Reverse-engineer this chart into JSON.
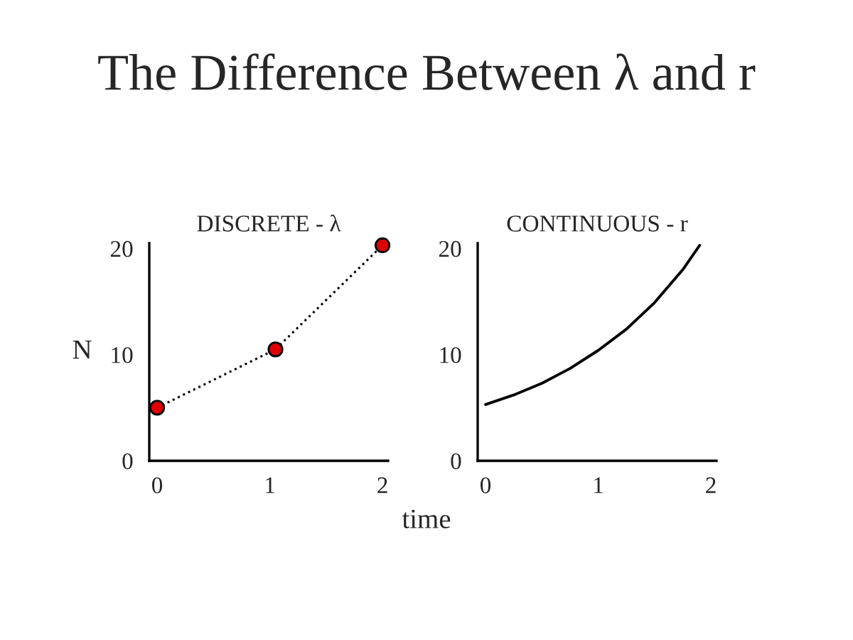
{
  "chart_data": [
    {
      "type": "line",
      "title": "DISCRETE - λ",
      "ylabel": "N",
      "xlabel": "time",
      "annotations": [
        "The Difference Between λ and r"
      ],
      "marker": "circle",
      "line_style": "dotted",
      "xlim": [
        -0.07,
        2.05
      ],
      "ylim": [
        0,
        20.5
      ],
      "xticks": [
        0,
        1,
        2
      ],
      "yticks": [
        0,
        10,
        20
      ],
      "grid": false,
      "series": [
        {
          "color": "#dd0000",
          "x": [
            0,
            1.05,
            2
          ],
          "values": [
            5,
            10.5,
            20.3
          ]
        }
      ]
    },
    {
      "type": "line",
      "title": "CONTINUOUS - r",
      "marker": "none",
      "line_style": "solid",
      "xlim": [
        -0.07,
        2.05
      ],
      "ylim": [
        0,
        20.5
      ],
      "xticks": [
        0,
        1,
        2
      ],
      "yticks": [
        0,
        10,
        20
      ],
      "grid": false,
      "series": [
        {
          "color": "#000000",
          "x": [
            0,
            0.25,
            0.5,
            0.75,
            1,
            1.25,
            1.5,
            1.75,
            1.9
          ],
          "values": [
            5.3,
            6.2,
            7.3,
            8.7,
            10.4,
            12.4,
            14.9,
            18,
            20.3
          ]
        }
      ]
    }
  ]
}
